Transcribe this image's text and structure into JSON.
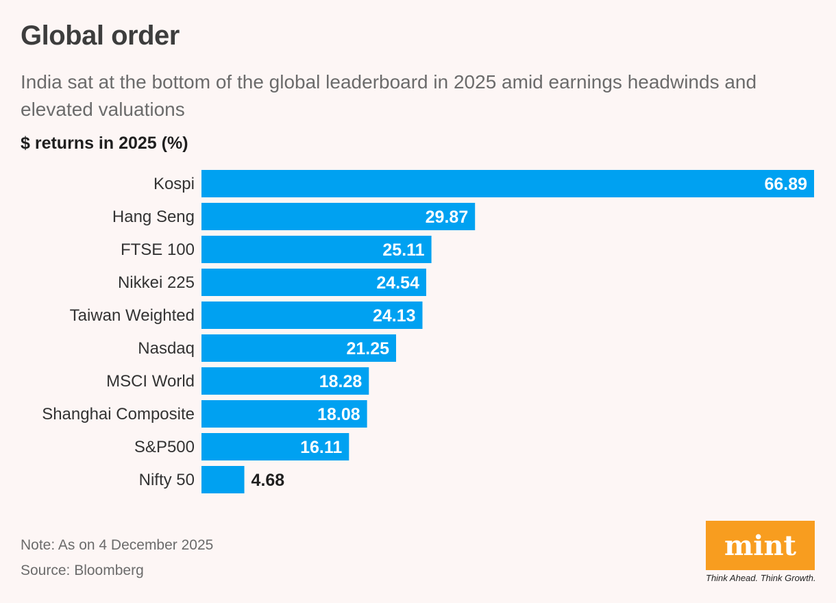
{
  "title": "Global order",
  "subtitle": "India sat at the bottom of the global leaderboard in 2025 amid earnings headwinds and elevated valuations",
  "chart_data": {
    "type": "bar",
    "orientation": "horizontal",
    "ylabel": "$ returns in 2025 (%)",
    "categories": [
      "Kospi",
      "Hang Seng",
      "FTSE 100",
      "Nikkei 225",
      "Taiwan Weighted",
      "Nasdaq",
      "MSCI World",
      "Shanghai Composite",
      "S&P500",
      "Nifty 50"
    ],
    "values": [
      66.89,
      29.87,
      25.11,
      24.54,
      24.13,
      21.25,
      18.28,
      18.08,
      16.11,
      4.68
    ],
    "value_labels": [
      "66.89",
      "29.87",
      "25.11",
      "24.54",
      "24.13",
      "21.25",
      "18.28",
      "18.08",
      "16.11",
      "4.68"
    ],
    "xlim": [
      0,
      66.89
    ],
    "grid": false,
    "bar_color": "#00a1f1"
  },
  "footer": {
    "note": "Note: As on 4 December 2025",
    "source": "Source: Bloomberg"
  },
  "logo": {
    "text": "mint",
    "tagline": "Think Ahead. Think Growth.",
    "color": "#f89d1f"
  }
}
